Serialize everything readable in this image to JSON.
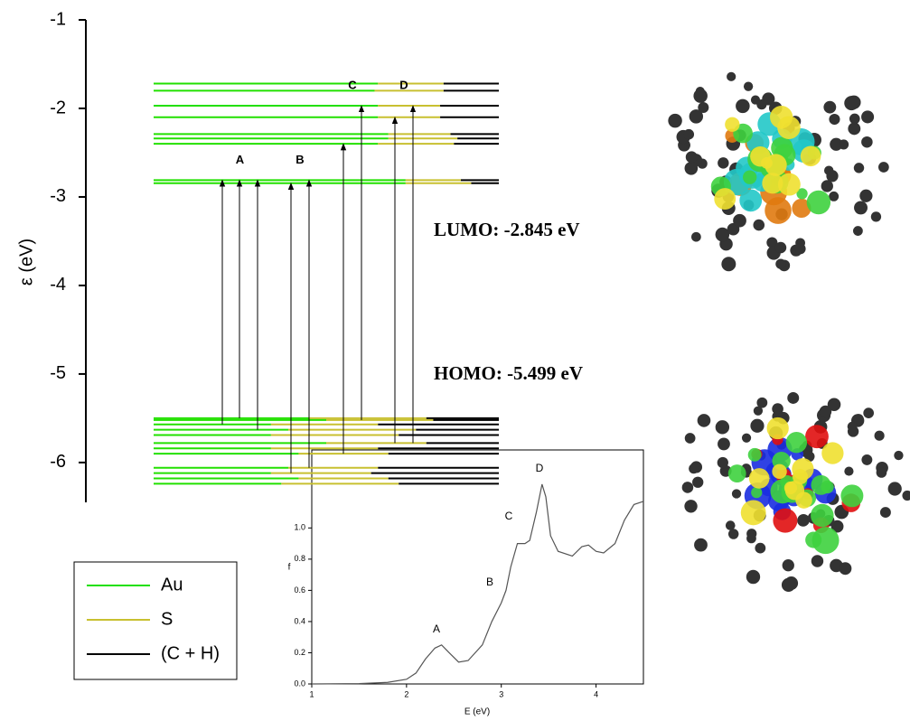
{
  "chart_data": [
    {
      "type": "energy-levels",
      "ylabel": "ε (eV)",
      "ylim": [
        -6.45,
        -1
      ],
      "yticks": [
        -1,
        -2,
        -3,
        -4,
        -5,
        -6
      ],
      "levels": [
        -1.72,
        -1.8,
        -1.97,
        -2.1,
        -2.29,
        -2.34,
        -2.4,
        -2.81,
        -2.845,
        -5.499,
        -5.52,
        -5.57,
        -5.63,
        -5.69,
        -5.78,
        -5.84,
        -5.9,
        -6.06,
        -6.12,
        -6.18,
        -6.24
      ],
      "series": [
        {
          "name": "Au",
          "color": "#22e000",
          "values": [
            65,
            64,
            65,
            65,
            68,
            68,
            65,
            73,
            73,
            45,
            50,
            34,
            39,
            34,
            50,
            34,
            42,
            39,
            34,
            42,
            37
          ]
        },
        {
          "name": "S",
          "color": "#c8c030",
          "values": [
            19,
            20,
            18,
            18,
            18,
            20,
            22,
            16,
            19,
            34,
            31,
            31,
            37,
            37,
            29,
            31,
            26,
            26,
            29,
            26,
            34
          ]
        },
        {
          "name": "(C + H)",
          "color": "#000000",
          "values": [
            16,
            16,
            17,
            17,
            14,
            12,
            13,
            11,
            8,
            21,
            19,
            35,
            24,
            29,
            21,
            35,
            32,
            35,
            37,
            32,
            29
          ]
        }
      ],
      "transitions": [
        {
          "label": "A",
          "pairs": [
            [
              -5.57,
              -2.81
            ],
            [
              -5.499,
              -2.81
            ],
            [
              -5.63,
              -2.81
            ]
          ]
        },
        {
          "label": "B",
          "pairs": [
            [
              -6.12,
              -2.845
            ],
            [
              -6.06,
              -2.81
            ]
          ]
        },
        {
          "label": "C",
          "pairs": [
            [
              -5.9,
              -2.4
            ],
            [
              -5.52,
              -1.97
            ]
          ]
        },
        {
          "label": "D",
          "pairs": [
            [
              -5.78,
              -2.1
            ],
            [
              -5.78,
              -1.97
            ]
          ]
        }
      ],
      "annotations": [
        "LUMO: -2.845 eV",
        "HOMO: -5.499 eV"
      ]
    },
    {
      "type": "line",
      "xlabel": "E (eV)",
      "ylabel": "f",
      "xlim": [
        1,
        4.5
      ],
      "ylim": [
        0,
        1.5
      ],
      "xticks": [
        1,
        2,
        3,
        4
      ],
      "yticks": [
        {
          "value": 0,
          "label": "0.0"
        },
        {
          "value": 0.2,
          "label": "0.2"
        },
        {
          "value": 0.4,
          "label": "0.4"
        },
        {
          "value": 0.6,
          "label": "0.6"
        },
        {
          "value": 0.8,
          "label": "0.8"
        },
        {
          "value": 1,
          "label": "1.0"
        }
      ],
      "color": "#555555",
      "x": [
        1.0,
        1.5,
        1.8,
        2.0,
        2.1,
        2.2,
        2.3,
        2.37,
        2.45,
        2.55,
        2.65,
        2.8,
        2.9,
        3.0,
        3.05,
        3.1,
        3.17,
        3.25,
        3.3,
        3.37,
        3.43,
        3.47,
        3.52,
        3.6,
        3.75,
        3.85,
        3.92,
        4.0,
        4.08,
        4.2,
        4.3,
        4.4,
        4.5
      ],
      "values": [
        0.0,
        0.002,
        0.01,
        0.03,
        0.07,
        0.16,
        0.23,
        0.25,
        0.2,
        0.14,
        0.15,
        0.25,
        0.4,
        0.52,
        0.6,
        0.75,
        0.9,
        0.9,
        0.92,
        1.1,
        1.28,
        1.2,
        0.95,
        0.85,
        0.82,
        0.88,
        0.89,
        0.85,
        0.84,
        0.9,
        1.05,
        1.15,
        1.17
      ],
      "peak_labels": [
        "A",
        "B",
        "C",
        "D"
      ]
    }
  ]
}
